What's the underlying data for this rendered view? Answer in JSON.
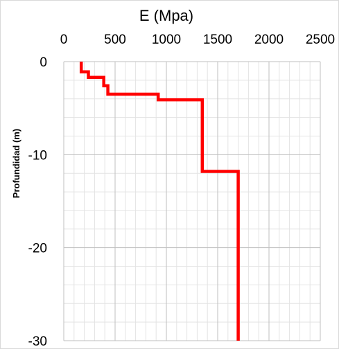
{
  "chart_data": {
    "type": "line",
    "title": "",
    "xlabel": "E (Mpa)",
    "ylabel": "Profundidad (m)",
    "xlim": [
      0,
      2500
    ],
    "ylim": [
      -30,
      0
    ],
    "x_axis_position": "top",
    "x_ticks": [
      0,
      500,
      1000,
      1500,
      2000,
      2500
    ],
    "y_ticks": [
      0,
      -10,
      -20,
      -30
    ],
    "x_tick_labels": [
      "0",
      "500",
      "1000",
      "1500",
      "2000",
      "2500"
    ],
    "y_tick_labels": [
      "0",
      "-10",
      "-20",
      "-30"
    ],
    "x_minor_step": 100,
    "y_minor_step": 2,
    "grid": true,
    "legend": "none",
    "series": [
      {
        "color": "#ff0000",
        "x": [
          170,
          170,
          240,
          240,
          390,
          390,
          430,
          430,
          920,
          920,
          1350,
          1350,
          1700,
          1700
        ],
        "y": [
          0,
          -1.1,
          -1.1,
          -1.7,
          -1.7,
          -2.6,
          -2.6,
          -3.5,
          -3.5,
          -4.1,
          -4.1,
          -11.8,
          -11.8,
          -30
        ]
      }
    ]
  }
}
